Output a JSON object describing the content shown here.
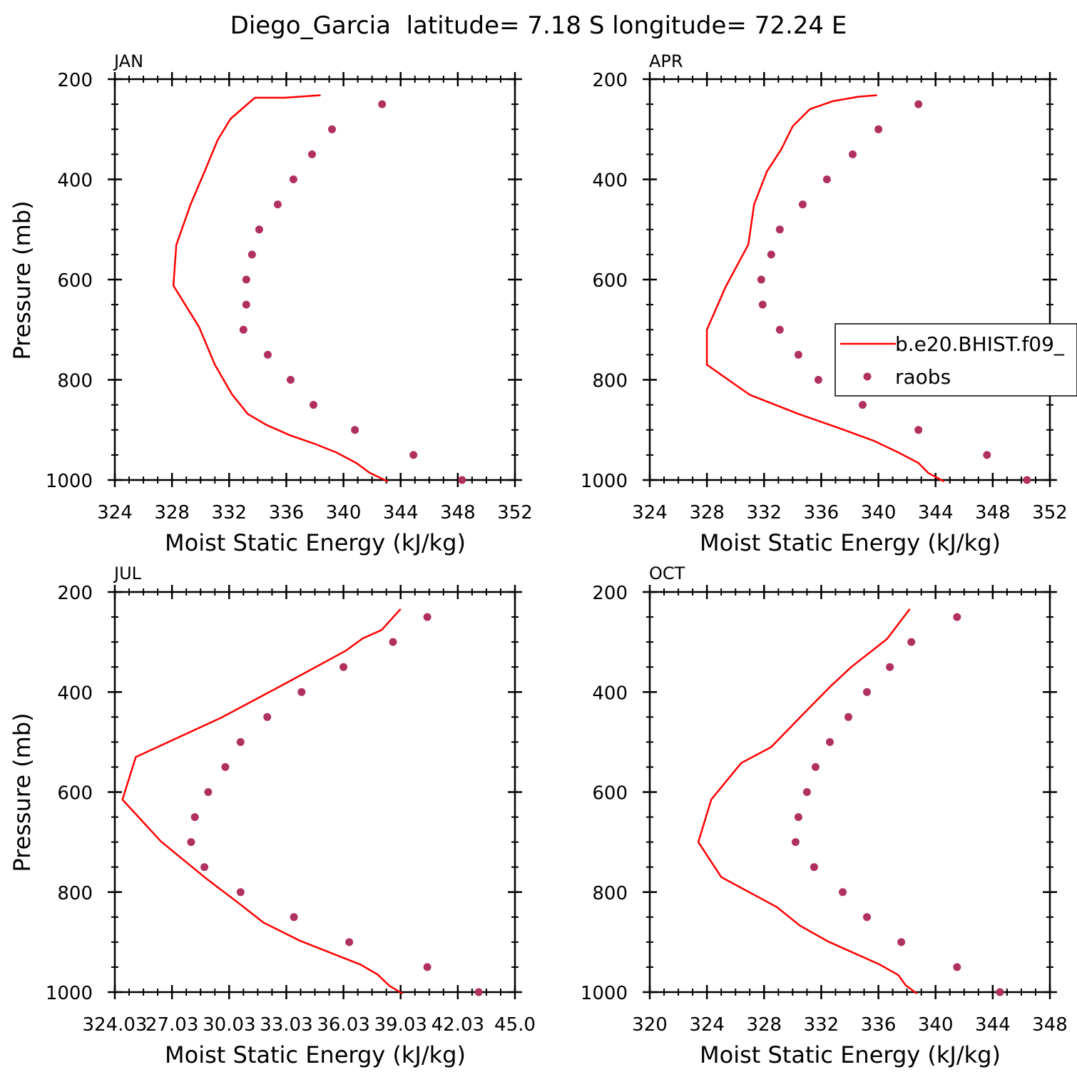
{
  "figure": {
    "title": "Diego_Garcia  latitude= 7.18 S longitude= 72.24 E",
    "legend": {
      "model_label": "b.e20.BHIST.f09_",
      "obs_label": "raobs"
    },
    "colors": {
      "model": "#ff0000",
      "obs": "#b03060",
      "axis": "#000000"
    }
  },
  "chart_data": [
    {
      "type": "line",
      "panel_label": "JAN",
      "xlabel": "Moist Static Energy (kJ/kg)",
      "ylabel": "Pressure (mb)",
      "xlim": [
        324,
        352
      ],
      "ylim": [
        1000,
        200
      ],
      "xticks": [
        324,
        328,
        332,
        336,
        340,
        344,
        348,
        352
      ],
      "xtick_labels": [
        "324",
        "328",
        "332",
        "336",
        "340",
        "344",
        "348",
        "352"
      ],
      "yticks": [
        200,
        400,
        600,
        800,
        1000
      ],
      "ytick_labels": [
        "200",
        "400",
        "600",
        "800",
        "1000"
      ],
      "series": [
        {
          "name": "b.e20.BHIST.f09_",
          "style": "line",
          "x": [
            343.1,
            341.8,
            340.9,
            339.5,
            338.0,
            336.2,
            334.6,
            333.3,
            332.2,
            331.0,
            329.9,
            328.1,
            328.3,
            329.3,
            330.3,
            331.2,
            332.1,
            333.8,
            335.9,
            338.4
          ],
          "y": [
            1003,
            985,
            966,
            945,
            928,
            910,
            890,
            868,
            829,
            770,
            695,
            612,
            531,
            450,
            383,
            321,
            279,
            237,
            237,
            232
          ]
        },
        {
          "name": "raobs",
          "style": "points",
          "x": [
            348.3,
            344.9,
            340.8,
            337.9,
            336.3,
            334.7,
            333.0,
            333.2,
            333.2,
            333.6,
            334.1,
            335.4,
            336.5,
            337.8,
            339.2,
            342.7
          ],
          "y": [
            1000,
            950,
            900,
            850,
            800,
            750,
            700,
            650,
            600,
            550,
            500,
            450,
            400,
            350,
            300,
            250
          ]
        }
      ]
    },
    {
      "type": "line",
      "panel_label": "APR",
      "xlabel": "Moist Static Energy (kJ/kg)",
      "ylabel": "",
      "xlim": [
        324,
        352
      ],
      "ylim": [
        1000,
        200
      ],
      "xticks": [
        324,
        328,
        332,
        336,
        340,
        344,
        348,
        352
      ],
      "xtick_labels": [
        "324",
        "328",
        "332",
        "336",
        "340",
        "344",
        "348",
        "352"
      ],
      "yticks": [
        200,
        400,
        600,
        800,
        1000
      ],
      "ytick_labels": [
        "200",
        "400",
        "600",
        "800",
        "1000"
      ],
      "legend_position": "right",
      "series": [
        {
          "name": "b.e20.BHIST.f09_",
          "style": "line",
          "x": [
            344.6,
            343.5,
            342.8,
            341.4,
            339.7,
            337.1,
            334.4,
            331.0,
            328.0,
            328.0,
            329.3,
            330.9,
            331.3,
            332.2,
            333.2,
            334.0,
            335.2,
            336.8,
            338.6,
            339.9
          ],
          "y": [
            1003,
            986,
            966,
            945,
            922,
            895,
            868,
            830,
            770,
            700,
            615,
            530,
            450,
            384,
            340,
            294,
            260,
            244,
            235,
            232
          ]
        },
        {
          "name": "raobs",
          "style": "points",
          "x": [
            350.4,
            347.6,
            342.8,
            338.9,
            335.8,
            334.4,
            333.1,
            331.9,
            331.8,
            332.5,
            333.1,
            334.7,
            336.4,
            338.2,
            340.0,
            342.8
          ],
          "y": [
            1000,
            950,
            900,
            850,
            800,
            750,
            700,
            650,
            600,
            550,
            500,
            450,
            400,
            350,
            300,
            250
          ]
        }
      ]
    },
    {
      "type": "line",
      "panel_label": "JUL",
      "xlabel": "Moist Static Energy (kJ/kg)",
      "ylabel": "Pressure (mb)",
      "xlim": [
        324.0,
        345.0
      ],
      "ylim": [
        1000,
        200
      ],
      "xticks": [
        324.0,
        327.0,
        330.0,
        333.0,
        336.0,
        339.0,
        342.0,
        345.0
      ],
      "xtick_labels": [
        "324.03",
        "27.03",
        "30.03",
        "33.03",
        "36.03",
        "39.03",
        "42.03",
        "45.0"
      ],
      "yticks": [
        200,
        400,
        600,
        800,
        1000
      ],
      "ytick_labels": [
        "200",
        "400",
        "600",
        "800",
        "1000"
      ],
      "series": [
        {
          "name": "b.e20.BHIST.f09_",
          "style": "line",
          "x": [
            339.1,
            338.4,
            337.8,
            336.9,
            333.7,
            331.8,
            330.6,
            328.7,
            326.4,
            324.4,
            325.1,
            329.6,
            332.9,
            336.1,
            337.0,
            338.0,
            339.0
          ],
          "y": [
            1003,
            987,
            965,
            945,
            897,
            861,
            825,
            770,
            698,
            615,
            530,
            451,
            384,
            318,
            293,
            276,
            234
          ]
        },
        {
          "name": "raobs",
          "style": "points",
          "x": [
            343.1,
            340.4,
            336.3,
            333.4,
            330.6,
            328.7,
            328.0,
            328.2,
            328.9,
            329.8,
            330.6,
            332.0,
            333.8,
            336.0,
            338.6,
            340.4
          ],
          "y": [
            1000,
            950,
            900,
            850,
            800,
            750,
            700,
            650,
            600,
            550,
            500,
            450,
            400,
            350,
            300,
            250
          ]
        }
      ]
    },
    {
      "type": "line",
      "panel_label": "OCT",
      "xlabel": "Moist Static Energy (kJ/kg)",
      "ylabel": "",
      "xlim": [
        320,
        348
      ],
      "ylim": [
        1000,
        200
      ],
      "xticks": [
        320,
        324,
        328,
        332,
        336,
        340,
        344,
        348
      ],
      "xtick_labels": [
        "320",
        "324",
        "328",
        "332",
        "336",
        "340",
        "344",
        "348"
      ],
      "yticks": [
        200,
        400,
        600,
        800,
        1000
      ],
      "ytick_labels": [
        "200",
        "400",
        "600",
        "800",
        "1000"
      ],
      "series": [
        {
          "name": "b.e20.BHIST.f09_",
          "style": "line",
          "x": [
            338.7,
            337.9,
            337.4,
            336.1,
            332.5,
            330.5,
            328.9,
            325.0,
            323.4,
            324.3,
            326.4,
            328.5,
            330.5,
            332.6,
            334.1,
            336.6,
            338.2
          ],
          "y": [
            1003,
            986,
            966,
            945,
            899,
            867,
            830,
            770,
            700,
            615,
            542,
            510,
            451,
            390,
            350,
            294,
            234
          ]
        },
        {
          "name": "raobs",
          "style": "points",
          "x": [
            344.5,
            341.5,
            337.6,
            335.2,
            333.5,
            331.5,
            330.2,
            330.4,
            331.0,
            331.6,
            332.6,
            333.9,
            335.2,
            336.8,
            338.3,
            341.5
          ],
          "y": [
            1000,
            950,
            900,
            850,
            800,
            750,
            700,
            650,
            600,
            550,
            500,
            450,
            400,
            350,
            300,
            250
          ]
        }
      ]
    }
  ]
}
